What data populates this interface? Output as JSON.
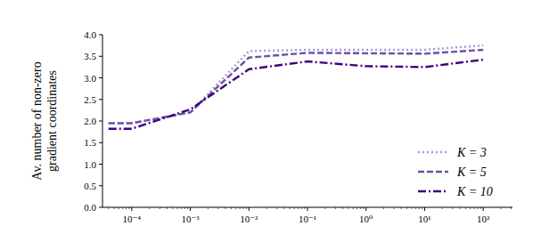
{
  "chart_data": {
    "type": "line",
    "ylabel": [
      "Av. number of non-zero",
      "gradient coordinates"
    ],
    "x": [
      4e-05,
      0.0001,
      0.001,
      0.01,
      0.1,
      1,
      10,
      100
    ],
    "series": [
      {
        "name": "K = 3",
        "color": "#a59ad8",
        "line_style": "dotted",
        "values": [
          1.95,
          1.95,
          2.2,
          3.62,
          3.65,
          3.65,
          3.65,
          3.75
        ]
      },
      {
        "name": "K = 5",
        "color": "#6a51a3",
        "line_style": "dashed",
        "values": [
          1.95,
          1.95,
          2.2,
          3.47,
          3.58,
          3.57,
          3.56,
          3.65
        ]
      },
      {
        "name": "K = 10",
        "color": "#3f007d",
        "line_style": "dashdot",
        "values": [
          1.82,
          1.82,
          2.27,
          3.2,
          3.38,
          3.27,
          3.25,
          3.42
        ]
      }
    ],
    "log": "x",
    "xlim": [
      3.16e-05,
      316
    ],
    "xticks": [
      {
        "value": 0.0001,
        "label": "10⁻⁴"
      },
      {
        "value": 0.001,
        "label": "10⁻³"
      },
      {
        "value": 0.01,
        "label": "10⁻²"
      },
      {
        "value": 0.1,
        "label": "10⁻¹"
      },
      {
        "value": 1,
        "label": "10⁰"
      },
      {
        "value": 10,
        "label": "10¹"
      },
      {
        "value": 100,
        "label": "10²"
      }
    ],
    "ylim": [
      0,
      4
    ],
    "yticks": [
      {
        "value": 0,
        "label": "0.0"
      },
      0.5,
      {
        "value": 1,
        "label": "1.0"
      },
      1.5,
      {
        "value": 2,
        "label": "2.0"
      },
      2.5,
      {
        "value": 3,
        "label": "3.0"
      },
      3.5,
      {
        "value": 4,
        "label": "4.0"
      }
    ],
    "grid": false,
    "legend": "lower right"
  }
}
